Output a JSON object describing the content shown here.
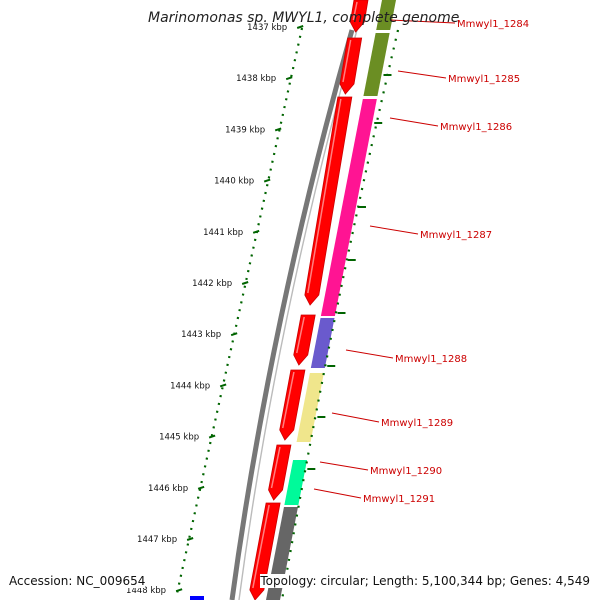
{
  "title": "Marinomonas sp. MWYL1, complete genome",
  "footer": {
    "accession": "Accession: NC_009654",
    "topology": "Topology: circular; Length: 5,100,344 bp; Genes: 4,549"
  },
  "ruler": {
    "unit": "kbp",
    "ticks": [
      "1437 kbp",
      "1438 kbp",
      "1439 kbp",
      "1440 kbp",
      "1441 kbp",
      "1442 kbp",
      "1443 kbp",
      "1444 kbp",
      "1445 kbp",
      "1446 kbp",
      "1447 kbp",
      "1448 kbp"
    ]
  },
  "genes": [
    {
      "name": "Mmwyl1_1284",
      "color": "#6b8e23"
    },
    {
      "name": "Mmwyl1_1285",
      "color": "#6b8e23"
    },
    {
      "name": "Mmwyl1_1286",
      "color": "#ff1493"
    },
    {
      "name": "Mmwyl1_1287",
      "color": "#ff1493"
    },
    {
      "name": "Mmwyl1_1288",
      "color": "#6a5acd"
    },
    {
      "name": "Mmwyl1_1289",
      "color": "#f0e68c"
    },
    {
      "name": "Mmwyl1_1290",
      "color": "#ffffff"
    },
    {
      "name": "Mmwyl1_1291",
      "color": "#00fa9a"
    }
  ],
  "colors": {
    "cds_strand": "#ff0000",
    "backbone": "#777777",
    "tick": "#006400",
    "label": "#cc0000",
    "unlabeled_block": "#666666",
    "blue_marker": "#0000ff"
  }
}
